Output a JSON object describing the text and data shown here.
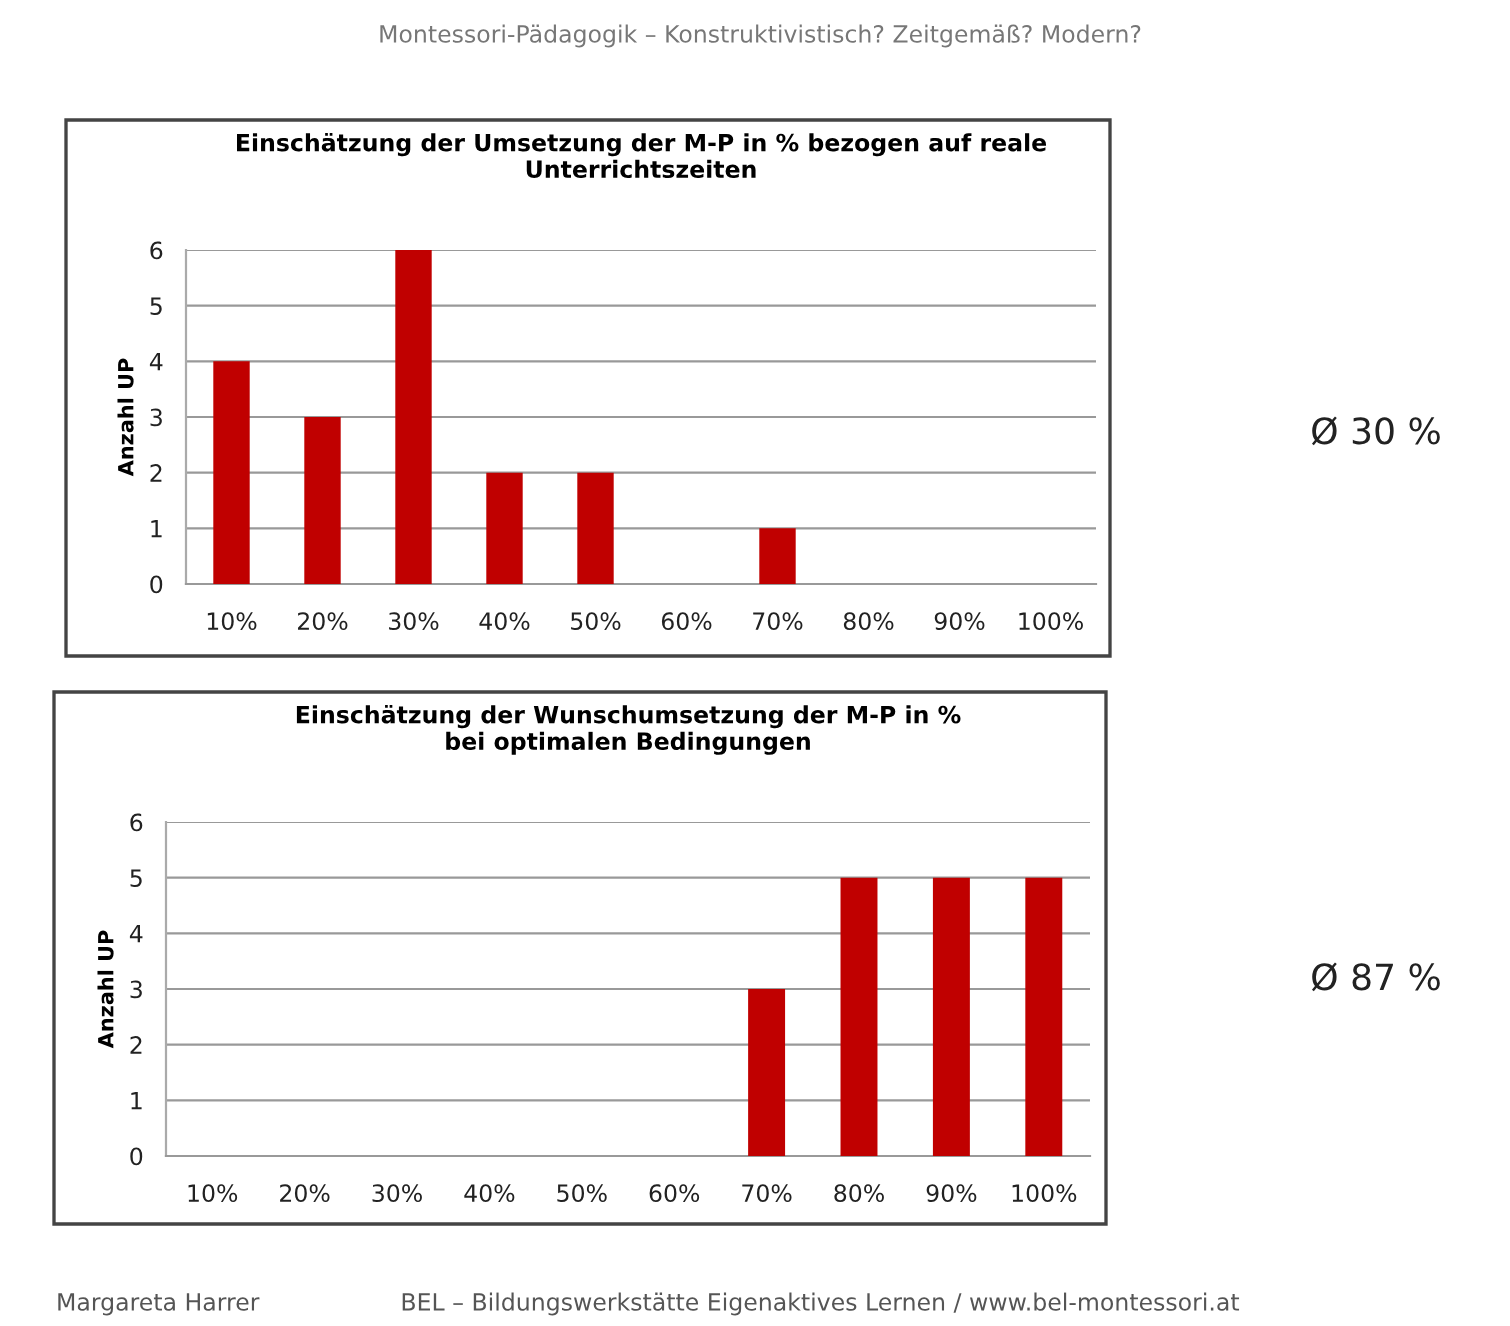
{
  "chart_data": [
    {
      "type": "bar",
      "title": "Einschätzung der Umsetzung der M-P in % bezogen auf reale\nUnterrichtszeiten",
      "ylabel": "Anzahl UP",
      "categories": [
        "10%",
        "20%",
        "30%",
        "40%",
        "50%",
        "60%",
        "70%",
        "80%",
        "90%",
        "100%"
      ],
      "values": [
        4,
        3,
        6,
        2,
        2,
        0,
        1,
        0,
        0,
        0
      ],
      "color": "#c00000",
      "ylim": [
        0,
        6
      ],
      "yticks": [
        0,
        1,
        2,
        3,
        4,
        5,
        6
      ],
      "grid": "y",
      "annotations": [
        "Montessori-Pädagogik – Konstruktivistisch? Zeitgemäß? Modern?",
        "Ø 30 %"
      ]
    },
    {
      "type": "bar",
      "title": "Einschätzung der Wunschumsetzung der M-P in %\nbei optimalen Bedingungen",
      "ylabel": "Anzahl UP",
      "categories": [
        "10%",
        "20%",
        "30%",
        "40%",
        "50%",
        "60%",
        "70%",
        "80%",
        "90%",
        "100%"
      ],
      "values": [
        0,
        0,
        0,
        0,
        0,
        0,
        3,
        5,
        5,
        5
      ],
      "color": "#c00000",
      "ylim": [
        0,
        6
      ],
      "yticks": [
        0,
        1,
        2,
        3,
        4,
        5,
        6
      ],
      "grid": "y",
      "annotations": [
        "Ø 87 %",
        "Margareta Harrer",
        "BEL – Bildungswerkstätte Eigenaktives Lernen / www.bel-montessori.at"
      ]
    }
  ]
}
